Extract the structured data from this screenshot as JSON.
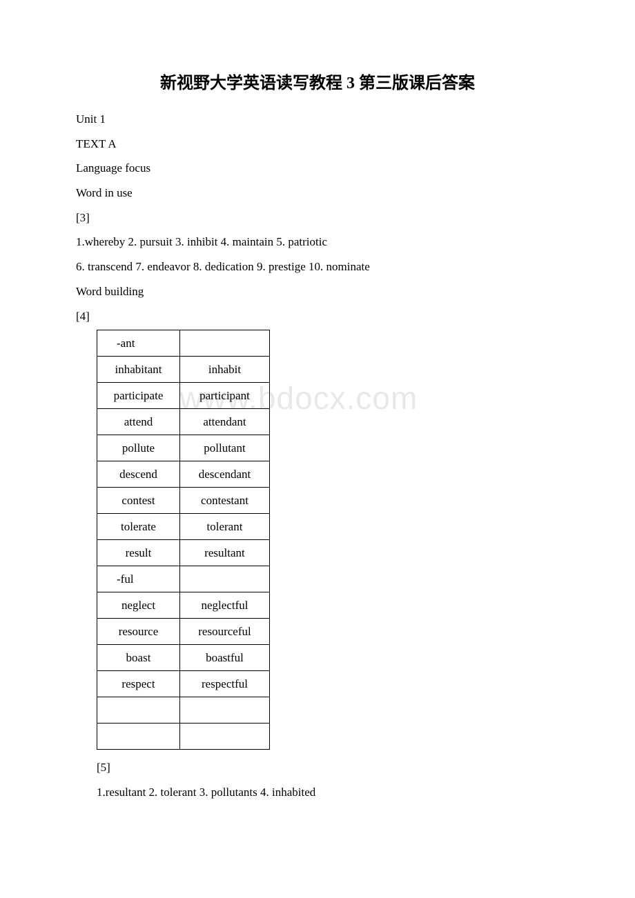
{
  "title": "新视野大学英语读写教程 3 第三版课后答案",
  "watermark_text": "www.bdocx.com",
  "lines": {
    "unit": "Unit 1",
    "text_a": "TEXT A",
    "lang_focus": "Language focus",
    "word_in_use": "Word in use",
    "bracket_3": "[3]",
    "answer_line_1": "1.whereby 2. pursuit  3. inhibit  4. maintain  5. patriotic",
    "answer_line_2": "6. transcend  7. endeavor 8. dedication 9. prestige  10. nominate",
    "word_building": "Word building",
    "bracket_4": "[4]",
    "bracket_5": "[5]",
    "answer_line_3": "1.resultant  2. tolerant 3. pollutants  4. inhabited"
  },
  "table": {
    "rows": [
      {
        "col1": "-ant",
        "col2": ""
      },
      {
        "col1": "inhabitant",
        "col2": "inhabit"
      },
      {
        "col1": "participate",
        "col2": "participant"
      },
      {
        "col1": "attend",
        "col2": "attendant"
      },
      {
        "col1": "pollute",
        "col2": "pollutant"
      },
      {
        "col1": "descend",
        "col2": "descendant"
      },
      {
        "col1": "contest",
        "col2": "contestant"
      },
      {
        "col1": "tolerate",
        "col2": "tolerant"
      },
      {
        "col1": "result",
        "col2": "resultant"
      },
      {
        "col1": "-ful",
        "col2": ""
      },
      {
        "col1": "neglect",
        "col2": "neglectful"
      },
      {
        "col1": "resource",
        "col2": "resourceful"
      },
      {
        "col1": "boast",
        "col2": "boastful"
      },
      {
        "col1": "respect",
        "col2": "respectful"
      },
      {
        "col1": "",
        "col2": ""
      },
      {
        "col1": "",
        "col2": ""
      }
    ]
  },
  "colors": {
    "background": "#ffffff",
    "text": "#000000",
    "watermark": "#e8e8e8",
    "border": "#000000"
  },
  "typography": {
    "title_fontsize": 24,
    "body_fontsize": 17,
    "watermark_fontsize": 46,
    "line_height": 2.1
  }
}
